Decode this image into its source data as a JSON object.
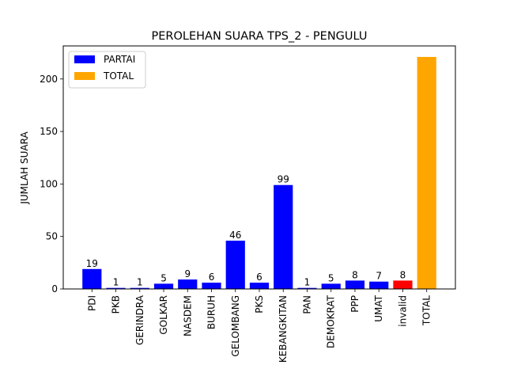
{
  "chart_data": {
    "type": "bar",
    "title": "PEROLEHAN SUARA TPS_2 - PENGULU",
    "xlabel": "",
    "ylabel": "JUMLAH SUARA",
    "ylim": [
      0,
      231.5
    ],
    "yticks": [
      0,
      50,
      100,
      150,
      200
    ],
    "grid": false,
    "legend_position": "top-left",
    "legend": [
      {
        "label": "PARTAI",
        "color": "#0000ff"
      },
      {
        "label": "TOTAL",
        "color": "#ffa500"
      }
    ],
    "categories": [
      "PDI",
      "PKB",
      "GERINDRA",
      "GOLKAR",
      "NASDEM",
      "BURUH",
      "GELOMBANG",
      "PKS",
      "KEBANGKITAN",
      "PAN",
      "DEMOKRAT",
      "PPP",
      "UMAT",
      "invalid",
      "TOTAL"
    ],
    "values": [
      19,
      1,
      1,
      5,
      9,
      6,
      46,
      6,
      99,
      1,
      5,
      8,
      7,
      8,
      221
    ],
    "data_labels": [
      "19",
      "1",
      "1",
      "5",
      "9",
      "6",
      "46",
      "6",
      "99",
      "1",
      "5",
      "8",
      "7",
      "8",
      ""
    ],
    "colors": [
      "#0000ff",
      "#0000ff",
      "#0000ff",
      "#0000ff",
      "#0000ff",
      "#0000ff",
      "#0000ff",
      "#0000ff",
      "#0000ff",
      "#0000ff",
      "#0000ff",
      "#0000ff",
      "#0000ff",
      "#ff0000",
      "#ffa500"
    ]
  }
}
